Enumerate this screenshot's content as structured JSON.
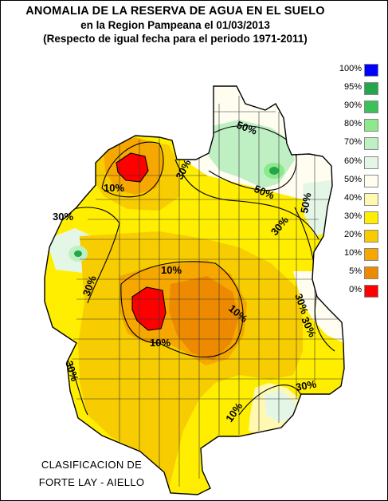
{
  "title": {
    "line1": "ANOMALIA DE LA RESERVA DE AGUA EN EL SUELO",
    "line2": "en la Region Pampeana el   01/03/2013",
    "line3": "(Respecto de igual fecha para el periodo 1971-2011)"
  },
  "legend": [
    {
      "label": "100%",
      "color": "#0000ff"
    },
    {
      "label": "95%",
      "color": "#22a84a"
    },
    {
      "label": "90%",
      "color": "#3cc05a"
    },
    {
      "label": "80%",
      "color": "#8cea8c"
    },
    {
      "label": "70%",
      "color": "#bff0c4"
    },
    {
      "label": "60%",
      "color": "#e4f7e6"
    },
    {
      "label": "50%",
      "color": "#fffdf0"
    },
    {
      "label": "40%",
      "color": "#fff8b0"
    },
    {
      "label": "30%",
      "color": "#ffee00"
    },
    {
      "label": "20%",
      "color": "#f7cc00"
    },
    {
      "label": "10%",
      "color": "#f7a800"
    },
    {
      "label": "5%",
      "color": "#ee8a00"
    },
    {
      "label": "0%",
      "color": "#ff0000"
    }
  ],
  "isoline_labels": [
    {
      "text": "50%"
    },
    {
      "text": "50%"
    },
    {
      "text": "50%"
    },
    {
      "text": "30%"
    },
    {
      "text": "30%"
    },
    {
      "text": "30%"
    },
    {
      "text": "30%"
    },
    {
      "text": "30%"
    },
    {
      "text": "30%"
    },
    {
      "text": "30%"
    },
    {
      "text": "30%"
    },
    {
      "text": "10%"
    },
    {
      "text": "10%"
    },
    {
      "text": "10%"
    },
    {
      "text": "10%"
    }
  ],
  "credit": {
    "line1": "CLASIFICACION DE",
    "line2": "FORTE LAY - AIELLO"
  },
  "colors": {
    "dry": "#ff0000",
    "very_low": "#ee8a00",
    "low": "#f7a800",
    "mid_low": "#f7cc00",
    "mid": "#ffee00",
    "normal": "#fff8b0",
    "wet": "#bff0c4",
    "very_wet": "#22a84a"
  }
}
